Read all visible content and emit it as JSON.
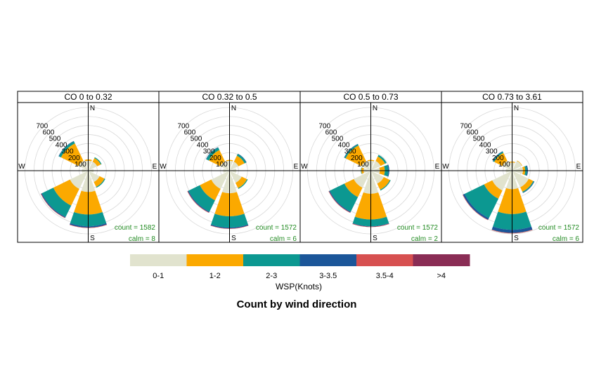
{
  "chart_data": {
    "type": "polar-stacked-bar",
    "title": "Count by wind direction",
    "legend_title": "WSP(Knots)",
    "legend_placement": "bottom",
    "speed_bins": [
      {
        "label": "0-1",
        "color": "#E1E3CE"
      },
      {
        "label": "1-2",
        "color": "#FBA900"
      },
      {
        "label": "2-3",
        "color": "#0C9891"
      },
      {
        "label": "3-3.5",
        "color": "#1B5699"
      },
      {
        "label": "3.5-4",
        "color": "#D75050"
      },
      {
        "label": ">4",
        "color": "#8A2D55"
      }
    ],
    "radial_ticks": [
      100,
      200,
      300,
      400,
      500,
      600,
      700
    ],
    "r_max": 700,
    "compass_labels": [
      "N",
      "E",
      "S",
      "W"
    ],
    "direction_labels": [
      "N",
      "NE",
      "E",
      "SE",
      "S",
      "SW",
      "W",
      "NW"
    ],
    "panels": [
      {
        "strip": "CO 0 to 0.32",
        "count_label": "count = 1582",
        "calm_label": "calm = 8",
        "directions": [
          {
            "dir": "N",
            "values": [
              110,
              15,
              0,
              0,
              0,
              0
            ]
          },
          {
            "dir": "NE",
            "values": [
              110,
              45,
              10,
              0,
              0,
              0
            ]
          },
          {
            "dir": "E",
            "values": [
              60,
              0,
              0,
              0,
              0,
              0
            ]
          },
          {
            "dir": "SE",
            "values": [
              140,
              60,
              10,
              0,
              0,
              0
            ]
          },
          {
            "dir": "S",
            "values": [
              235,
              250,
              130,
              15,
              5,
              0
            ]
          },
          {
            "dir": "SW",
            "values": [
              225,
              205,
              140,
              10,
              5,
              0
            ]
          },
          {
            "dir": "W",
            "values": [
              70,
              0,
              0,
              0,
              0,
              0
            ]
          },
          {
            "dir": "NW",
            "values": [
              120,
              215,
              25,
              5,
              0,
              0
            ]
          }
        ]
      },
      {
        "strip": "CO 0.32 to 0.5",
        "count_label": "count = 1572",
        "calm_label": "calm = 6",
        "directions": [
          {
            "dir": "N",
            "values": [
              110,
              10,
              0,
              0,
              0,
              0
            ]
          },
          {
            "dir": "NE",
            "values": [
              110,
              75,
              20,
              5,
              0,
              0
            ]
          },
          {
            "dir": "E",
            "values": [
              75,
              0,
              0,
              0,
              0,
              0
            ]
          },
          {
            "dir": "SE",
            "values": [
              150,
              65,
              10,
              0,
              0,
              0
            ]
          },
          {
            "dir": "S",
            "values": [
              250,
              255,
              125,
              10,
              5,
              0
            ]
          },
          {
            "dir": "SW",
            "values": [
              225,
              140,
              140,
              10,
              5,
              0
            ]
          },
          {
            "dir": "W",
            "values": [
              70,
              0,
              0,
              0,
              0,
              0
            ]
          },
          {
            "dir": "NW",
            "values": [
              115,
              140,
              30,
              5,
              0,
              0
            ]
          }
        ]
      },
      {
        "strip": "CO 0.5 to 0.73",
        "count_label": "count = 1572",
        "calm_label": "calm = 2",
        "directions": [
          {
            "dir": "N",
            "values": [
              110,
              10,
              0,
              0,
              0,
              0
            ]
          },
          {
            "dir": "NE",
            "values": [
              120,
              55,
              20,
              0,
              0,
              0
            ]
          },
          {
            "dir": "E",
            "values": [
              100,
              55,
              40,
              10,
              0,
              0
            ]
          },
          {
            "dir": "SE",
            "values": [
              160,
              75,
              10,
              0,
              0,
              0
            ]
          },
          {
            "dir": "S",
            "values": [
              255,
              285,
              75,
              5,
              5,
              0
            ]
          },
          {
            "dir": "SW",
            "values": [
              210,
              115,
              180,
              10,
              5,
              0
            ]
          },
          {
            "dir": "W",
            "values": [
              80,
              25,
              5,
              0,
              0,
              0
            ]
          },
          {
            "dir": "NW",
            "values": [
              115,
              195,
              15,
              5,
              0,
              0
            ]
          }
        ]
      },
      {
        "strip": "CO 0.73 to 3.61",
        "count_label": "count = 1572",
        "calm_label": "calm = 6",
        "directions": [
          {
            "dir": "N",
            "values": [
              90,
              10,
              0,
              0,
              0,
              0
            ]
          },
          {
            "dir": "NE",
            "values": [
              120,
              5,
              0,
              0,
              0,
              0
            ]
          },
          {
            "dir": "E",
            "values": [
              120,
              25,
              20,
              10,
              0,
              0
            ]
          },
          {
            "dir": "SE",
            "values": [
              205,
              55,
              10,
              5,
              0,
              0
            ]
          },
          {
            "dir": "S",
            "values": [
              205,
              275,
              175,
              35,
              5,
              0
            ]
          },
          {
            "dir": "SW",
            "values": [
              245,
              100,
              240,
              20,
              5,
              0
            ]
          },
          {
            "dir": "W",
            "values": [
              70,
              0,
              0,
              0,
              0,
              0
            ]
          },
          {
            "dir": "NW",
            "values": [
              120,
              100,
              15,
              5,
              0,
              0
            ]
          }
        ]
      }
    ]
  }
}
